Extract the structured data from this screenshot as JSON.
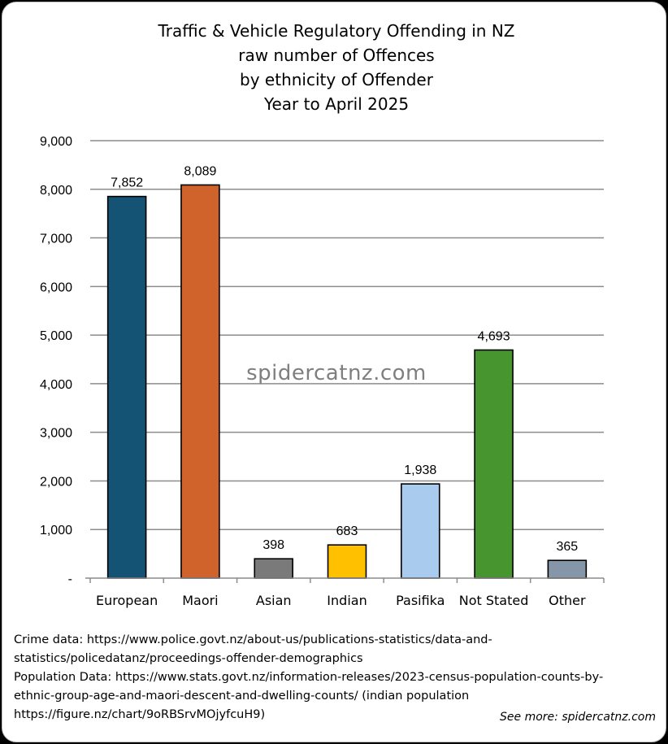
{
  "chart_data": {
    "type": "bar",
    "title_lines": [
      "Traffic & Vehicle Regulatory Offending in NZ",
      "raw number of Offences",
      "by ethnicity of Offender",
      "Year to April 2025"
    ],
    "categories": [
      "European",
      "Maori",
      "Asian",
      "Indian",
      "Pasifika",
      "Not Stated",
      "Other"
    ],
    "values": [
      7852,
      8089,
      398,
      683,
      1938,
      4693,
      365
    ],
    "data_labels": [
      "7,852",
      "8,089",
      "398",
      "683",
      "1,938",
      "4,693",
      "365"
    ],
    "bar_colors": [
      "#145374",
      "#d0622c",
      "#7a7a7a",
      "#ffc000",
      "#a9cbee",
      "#46952e",
      "#8496a8"
    ],
    "ylim": [
      0,
      9000
    ],
    "yticks": [
      0,
      1000,
      2000,
      3000,
      4000,
      5000,
      6000,
      7000,
      8000,
      9000
    ],
    "ytick_labels": [
      "-",
      "1,000",
      "2,000",
      "3,000",
      "4,000",
      "5,000",
      "6,000",
      "7,000",
      "8,000",
      "9,000"
    ],
    "grid": true,
    "legend": "none",
    "xlabel": "",
    "ylabel": ""
  },
  "watermark": "spidercatnz.com",
  "source_lines": [
    "Crime data: https://www.police.govt.nz/about-us/publications-statistics/data-and-",
    "statistics/policedatanz/proceedings-offender-demographics",
    "Population Data: https://www.stats.govt.nz/information-releases/2023-census-population-counts-by-",
    "ethnic-group-age-and-maori-descent-and-dwelling-counts/ (indian population",
    "https://figure.nz/chart/9oRBSrvMOjyfcuH9)"
  ],
  "see_more": "See more: spidercatnz.com"
}
